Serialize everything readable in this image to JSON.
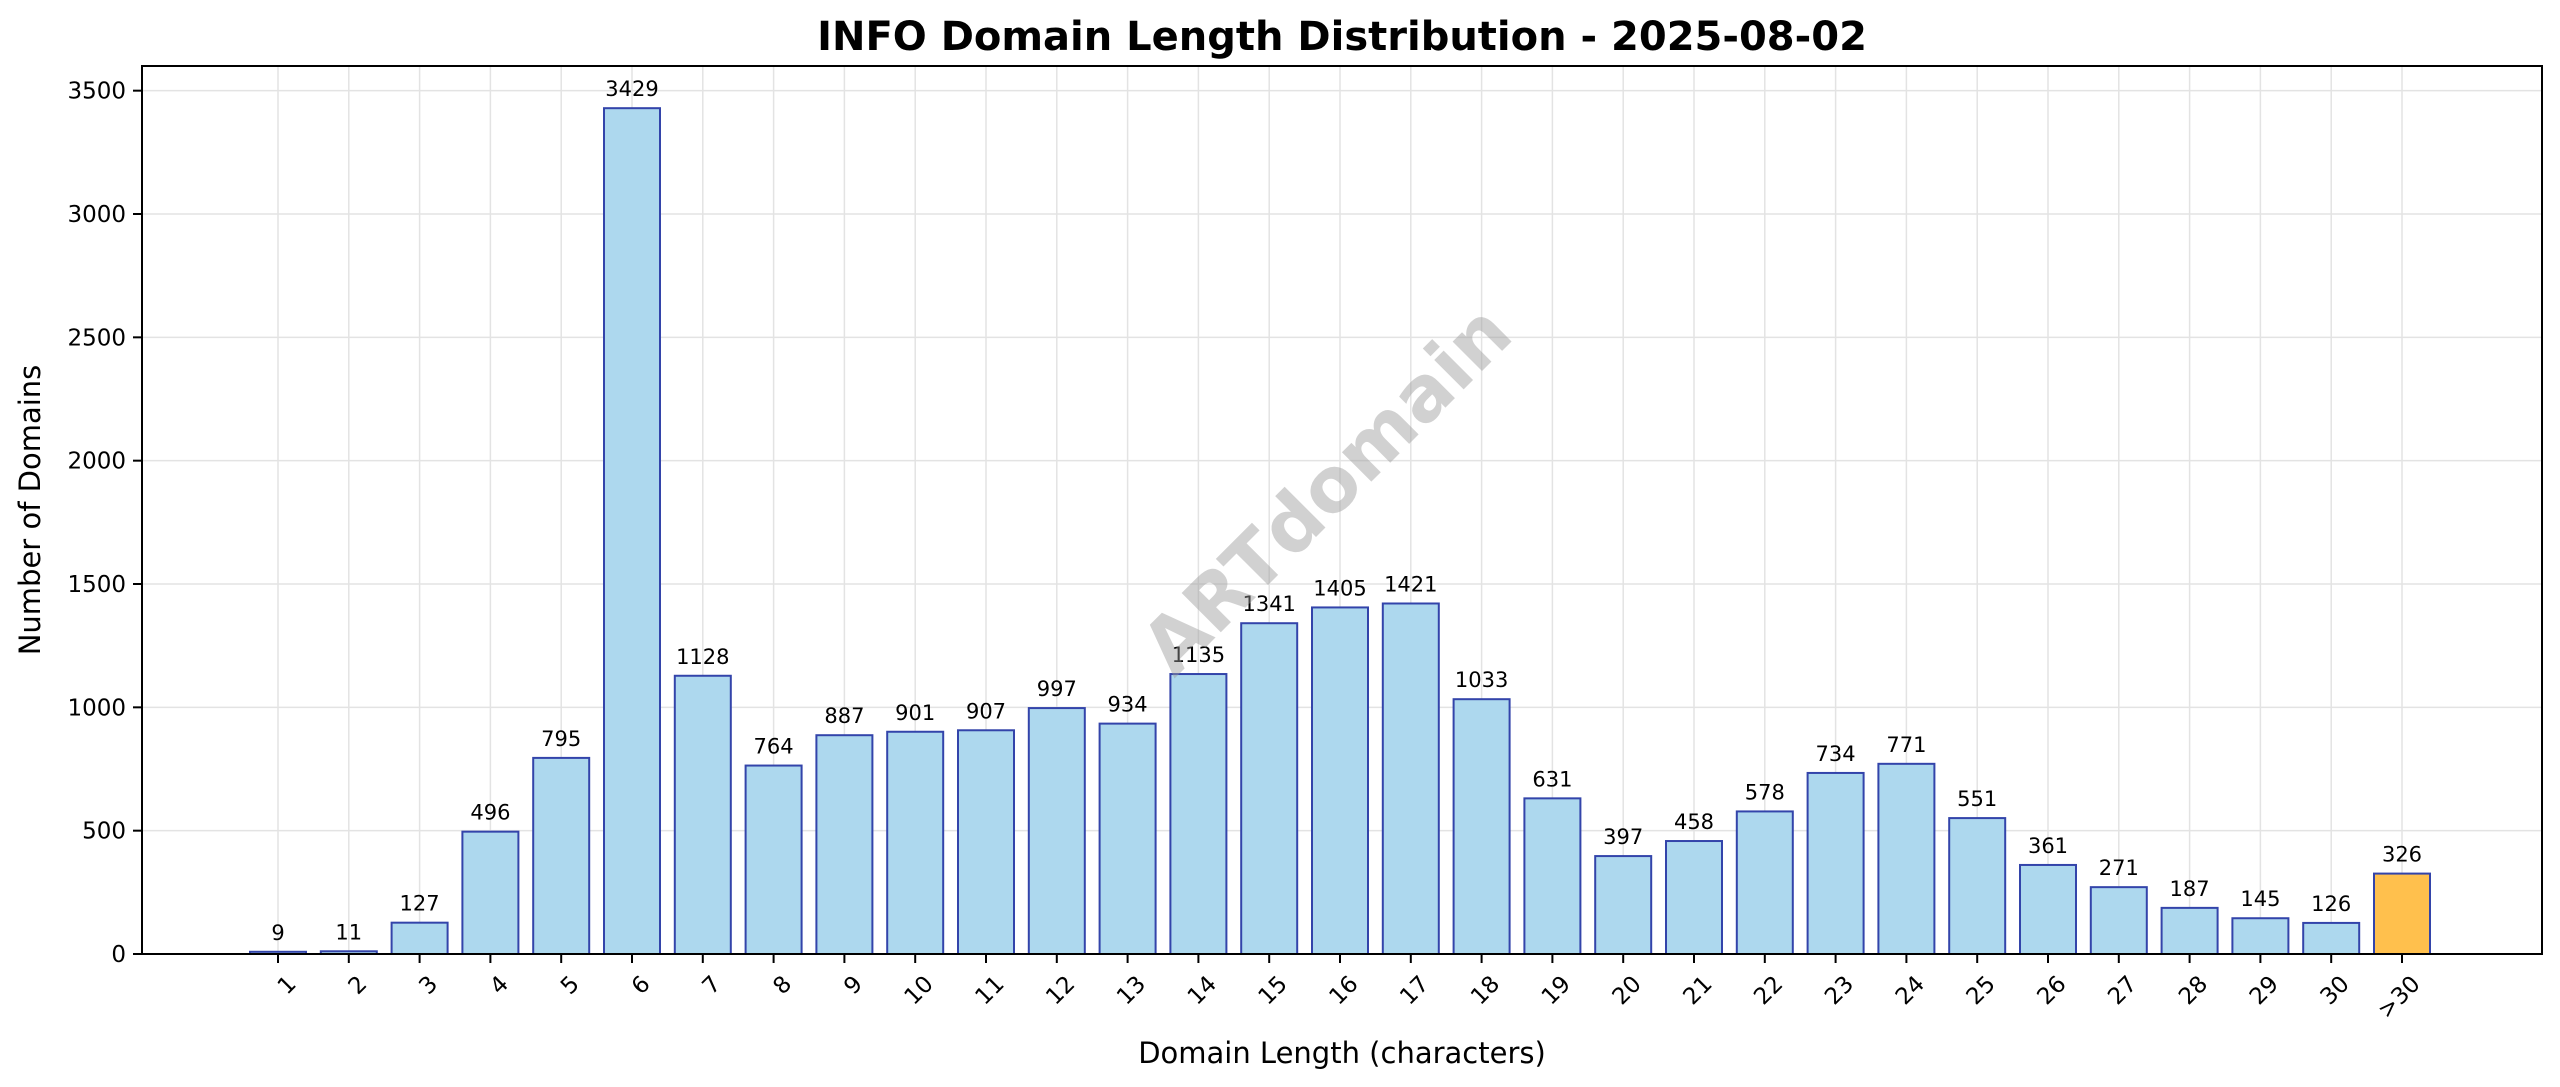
{
  "chart_data": {
    "type": "bar",
    "title": "INFO Domain Length Distribution - 2025-08-02",
    "xlabel": "Domain Length (characters)",
    "ylabel": "Number of Domains",
    "ylim": [
      0,
      3600
    ],
    "yticks": [
      0,
      500,
      1000,
      1500,
      2000,
      2500,
      3000,
      3500
    ],
    "grid": true,
    "watermark": "ARTdomain",
    "categories": [
      "1",
      "2",
      "3",
      "4",
      "5",
      "6",
      "7",
      "8",
      "9",
      "10",
      "11",
      "12",
      "13",
      "14",
      "15",
      "16",
      "17",
      "18",
      "19",
      "20",
      "21",
      "22",
      "23",
      "24",
      "25",
      "26",
      "27",
      "28",
      "29",
      "30",
      ">30"
    ],
    "values": [
      9,
      11,
      127,
      496,
      795,
      3429,
      1128,
      764,
      887,
      901,
      907,
      997,
      934,
      1135,
      1341,
      1405,
      1421,
      1033,
      631,
      397,
      458,
      578,
      734,
      771,
      551,
      361,
      271,
      187,
      145,
      126,
      326
    ],
    "colors": {
      "bar_fill": "#add8ee",
      "bar_edge": "#3344aa",
      "highlight_fill": "#ffc04d",
      "highlight_category": ">30",
      "grid": "#e3e3e3"
    }
  }
}
